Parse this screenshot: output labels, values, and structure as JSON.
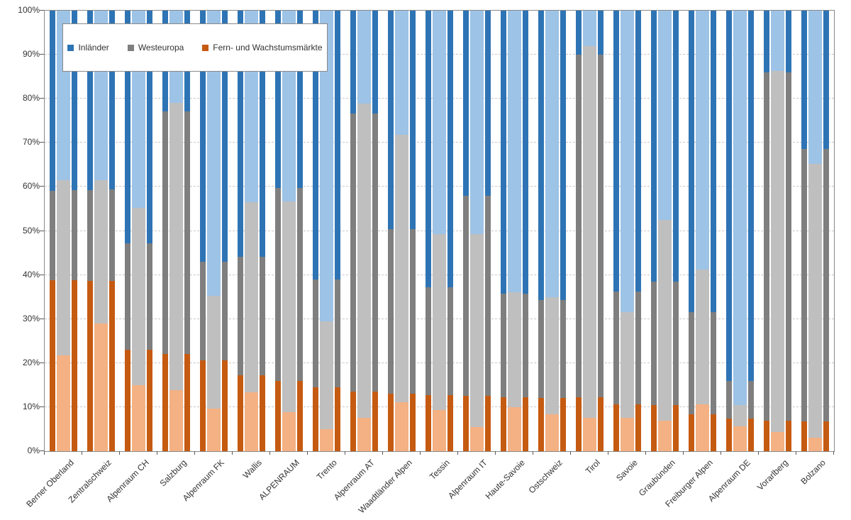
{
  "chart_data": {
    "type": "bar",
    "subtype": "stacked-100-percent-column",
    "title": "",
    "xlabel": "",
    "ylabel": "",
    "ylim": [
      0,
      100
    ],
    "grid": "horizontal-dashed",
    "legend_position": "top-left-inset",
    "y_ticks": [
      "0%",
      "10%",
      "20%",
      "30%",
      "40%",
      "50%",
      "60%",
      "70%",
      "80%",
      "90%",
      "100%"
    ],
    "series_meta": {
      "bars_per_category": [
        "dark",
        "light",
        "dark"
      ],
      "segment_order_bottom_to_top": [
        "fern",
        "west",
        "inl"
      ]
    },
    "legend": [
      {
        "label": "Inländer",
        "swatch": "#2E74B5",
        "color_dark": "#2E74B5",
        "color_light": "#9DC3E6"
      },
      {
        "label": "Westeuropa",
        "swatch": "#7F7F7F",
        "color_dark": "#7F7F7F",
        "color_light": "#BFBFBF"
      },
      {
        "label": "Fern- und Wachstumsmärkte",
        "swatch": "#C55A11",
        "color_dark": "#C55A11",
        "color_light": "#F4B183"
      }
    ],
    "categories": [
      "Berner Oberland",
      "Zentralschweiz",
      "Alpenraum CH",
      "Salzburg",
      "Alpenraum FK",
      "Wallis",
      "ALPENRAUM",
      "Trento",
      "Alpenraum AT",
      "Waadtländer Alpen",
      "Tessin",
      "Alpenraum IT",
      "Haute-Savoie",
      "Ostschweiz",
      "Tirol",
      "Savoie",
      "Graubünden",
      "Freiburger Alpen",
      "Alpenraum DE",
      "Vorarlberg",
      "Bolzano"
    ],
    "values": [
      {
        "category": "Berner Oberland",
        "bars": [
          {
            "variant": "dark",
            "fern": 38.8,
            "west": 20.3,
            "inl": 40.9
          },
          {
            "variant": "light",
            "fern": 21.8,
            "west": 39.7,
            "inl": 38.5
          },
          {
            "variant": "dark",
            "fern": 38.8,
            "west": 20.5,
            "inl": 40.7
          }
        ]
      },
      {
        "category": "Zentralschweiz",
        "bars": [
          {
            "variant": "dark",
            "fern": 38.6,
            "west": 20.6,
            "inl": 40.8
          },
          {
            "variant": "light",
            "fern": 29.0,
            "west": 32.5,
            "inl": 38.5
          },
          {
            "variant": "dark",
            "fern": 38.6,
            "west": 20.8,
            "inl": 40.6
          }
        ]
      },
      {
        "category": "Alpenraum CH",
        "bars": [
          {
            "variant": "dark",
            "fern": 23.0,
            "west": 24.2,
            "inl": 52.8
          },
          {
            "variant": "light",
            "fern": 15.0,
            "west": 40.3,
            "inl": 44.7
          },
          {
            "variant": "dark",
            "fern": 23.0,
            "west": 24.2,
            "inl": 52.8
          }
        ]
      },
      {
        "category": "Salzburg",
        "bars": [
          {
            "variant": "dark",
            "fern": 22.0,
            "west": 55.2,
            "inl": 22.8
          },
          {
            "variant": "light",
            "fern": 13.8,
            "west": 65.2,
            "inl": 21.0
          },
          {
            "variant": "dark",
            "fern": 22.0,
            "west": 55.2,
            "inl": 22.8
          }
        ]
      },
      {
        "category": "Alpenraum FK",
        "bars": [
          {
            "variant": "dark",
            "fern": 20.6,
            "west": 22.4,
            "inl": 57.0
          },
          {
            "variant": "light",
            "fern": 9.7,
            "west": 25.6,
            "inl": 64.7
          },
          {
            "variant": "dark",
            "fern": 20.6,
            "west": 22.4,
            "inl": 57.0
          }
        ]
      },
      {
        "category": "Wallis",
        "bars": [
          {
            "variant": "dark",
            "fern": 17.3,
            "west": 26.9,
            "inl": 55.8
          },
          {
            "variant": "light",
            "fern": 13.3,
            "west": 43.3,
            "inl": 43.4
          },
          {
            "variant": "dark",
            "fern": 17.3,
            "west": 26.9,
            "inl": 55.8
          }
        ]
      },
      {
        "category": "ALPENRAUM",
        "bars": [
          {
            "variant": "dark",
            "fern": 16.0,
            "west": 43.8,
            "inl": 40.2
          },
          {
            "variant": "light",
            "fern": 8.8,
            "west": 47.9,
            "inl": 43.3
          },
          {
            "variant": "dark",
            "fern": 16.0,
            "west": 43.8,
            "inl": 40.2
          }
        ]
      },
      {
        "category": "Trento",
        "bars": [
          {
            "variant": "dark",
            "fern": 14.5,
            "west": 24.4,
            "inl": 61.1
          },
          {
            "variant": "light",
            "fern": 5.0,
            "west": 24.4,
            "inl": 70.6
          },
          {
            "variant": "dark",
            "fern": 14.5,
            "west": 24.4,
            "inl": 61.1
          }
        ]
      },
      {
        "category": "Alpenraum AT",
        "bars": [
          {
            "variant": "dark",
            "fern": 13.6,
            "west": 63.0,
            "inl": 23.4
          },
          {
            "variant": "light",
            "fern": 7.5,
            "west": 71.4,
            "inl": 21.1
          },
          {
            "variant": "dark",
            "fern": 13.6,
            "west": 63.0,
            "inl": 23.4
          }
        ]
      },
      {
        "category": "Waadtländer Alpen",
        "bars": [
          {
            "variant": "dark",
            "fern": 13.1,
            "west": 37.3,
            "inl": 49.6
          },
          {
            "variant": "light",
            "fern": 11.1,
            "west": 60.7,
            "inl": 28.2
          },
          {
            "variant": "dark",
            "fern": 13.1,
            "west": 37.3,
            "inl": 49.6
          }
        ]
      },
      {
        "category": "Tessin",
        "bars": [
          {
            "variant": "dark",
            "fern": 12.8,
            "west": 24.4,
            "inl": 62.8
          },
          {
            "variant": "light",
            "fern": 9.3,
            "west": 40.0,
            "inl": 50.7
          },
          {
            "variant": "dark",
            "fern": 12.8,
            "west": 24.4,
            "inl": 62.8
          }
        ]
      },
      {
        "category": "Alpenraum IT",
        "bars": [
          {
            "variant": "dark",
            "fern": 12.5,
            "west": 45.4,
            "inl": 42.1
          },
          {
            "variant": "light",
            "fern": 5.5,
            "west": 43.7,
            "inl": 50.8
          },
          {
            "variant": "dark",
            "fern": 12.5,
            "west": 45.4,
            "inl": 42.1
          }
        ]
      },
      {
        "category": "Haute-Savoie",
        "bars": [
          {
            "variant": "dark",
            "fern": 12.2,
            "west": 23.6,
            "inl": 64.2
          },
          {
            "variant": "light",
            "fern": 10.0,
            "west": 26.0,
            "inl": 64.0
          },
          {
            "variant": "dark",
            "fern": 12.2,
            "west": 23.6,
            "inl": 64.2
          }
        ]
      },
      {
        "category": "Ostschweiz",
        "bars": [
          {
            "variant": "dark",
            "fern": 12.0,
            "west": 22.3,
            "inl": 65.7
          },
          {
            "variant": "light",
            "fern": 8.3,
            "west": 26.7,
            "inl": 65.0
          },
          {
            "variant": "dark",
            "fern": 12.0,
            "west": 22.3,
            "inl": 65.7
          }
        ]
      },
      {
        "category": "Tirol",
        "bars": [
          {
            "variant": "dark",
            "fern": 12.3,
            "west": 77.7,
            "inl": 10.0
          },
          {
            "variant": "light",
            "fern": 7.6,
            "west": 84.3,
            "inl": 8.1
          },
          {
            "variant": "dark",
            "fern": 12.3,
            "west": 77.7,
            "inl": 10.0
          }
        ]
      },
      {
        "category": "Savoie",
        "bars": [
          {
            "variant": "dark",
            "fern": 10.6,
            "west": 25.6,
            "inl": 63.8
          },
          {
            "variant": "light",
            "fern": 7.5,
            "west": 24.0,
            "inl": 68.5
          },
          {
            "variant": "dark",
            "fern": 10.6,
            "west": 25.6,
            "inl": 63.8
          }
        ]
      },
      {
        "category": "Graubünden",
        "bars": [
          {
            "variant": "dark",
            "fern": 10.4,
            "west": 28.1,
            "inl": 61.5
          },
          {
            "variant": "light",
            "fern": 7.0,
            "west": 45.5,
            "inl": 47.5
          },
          {
            "variant": "dark",
            "fern": 10.4,
            "west": 28.1,
            "inl": 61.5
          }
        ]
      },
      {
        "category": "Freiburger Alpen",
        "bars": [
          {
            "variant": "dark",
            "fern": 8.3,
            "west": 23.3,
            "inl": 68.4
          },
          {
            "variant": "light",
            "fern": 10.6,
            "west": 30.6,
            "inl": 58.8
          },
          {
            "variant": "dark",
            "fern": 8.3,
            "west": 23.3,
            "inl": 68.4
          }
        ]
      },
      {
        "category": "Alpenraum DE",
        "bars": [
          {
            "variant": "dark",
            "fern": 7.4,
            "west": 8.6,
            "inl": 84.0
          },
          {
            "variant": "light",
            "fern": 5.6,
            "west": 4.8,
            "inl": 89.6
          },
          {
            "variant": "dark",
            "fern": 7.4,
            "west": 8.6,
            "inl": 84.0
          }
        ]
      },
      {
        "category": "Vorarlberg",
        "bars": [
          {
            "variant": "dark",
            "fern": 6.9,
            "west": 79.1,
            "inl": 14.0
          },
          {
            "variant": "light",
            "fern": 4.4,
            "west": 81.9,
            "inl": 13.7
          },
          {
            "variant": "dark",
            "fern": 6.9,
            "west": 79.1,
            "inl": 14.0
          }
        ]
      },
      {
        "category": "Bolzano",
        "bars": [
          {
            "variant": "dark",
            "fern": 6.8,
            "west": 61.8,
            "inl": 31.4
          },
          {
            "variant": "light",
            "fern": 3.0,
            "west": 62.3,
            "inl": 34.7
          },
          {
            "variant": "dark",
            "fern": 6.8,
            "west": 61.8,
            "inl": 31.4
          }
        ]
      }
    ]
  }
}
